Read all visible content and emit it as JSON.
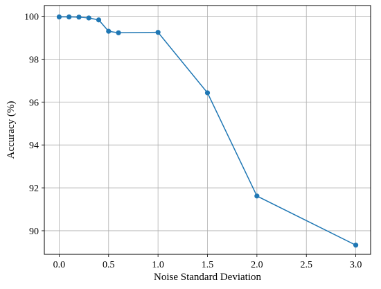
{
  "chart_data": {
    "type": "line",
    "title": "",
    "xlabel": "Noise Standard Deviation",
    "ylabel": "Accuracy (%)",
    "xlim": [
      -0.15,
      3.15
    ],
    "ylim": [
      88.9,
      100.5
    ],
    "xticks": [
      0.0,
      0.5,
      1.0,
      1.5,
      2.0,
      2.5,
      3.0
    ],
    "xtick_labels": [
      "0.0",
      "0.5",
      "1.0",
      "1.5",
      "2.0",
      "2.5",
      "3.0"
    ],
    "yticks": [
      90,
      92,
      94,
      96,
      98,
      100
    ],
    "ytick_labels": [
      "90",
      "92",
      "94",
      "96",
      "98",
      "100"
    ],
    "grid": true,
    "legend": "none",
    "series": [
      {
        "color": "#1f77b4",
        "marker": "circle",
        "x": [
          0.0,
          0.1,
          0.2,
          0.3,
          0.4,
          0.5,
          0.6,
          1.0,
          1.5,
          2.0,
          3.0
        ],
        "y": [
          99.97,
          99.97,
          99.96,
          99.92,
          99.83,
          99.3,
          99.23,
          99.25,
          96.43,
          91.62,
          89.33
        ]
      }
    ]
  }
}
